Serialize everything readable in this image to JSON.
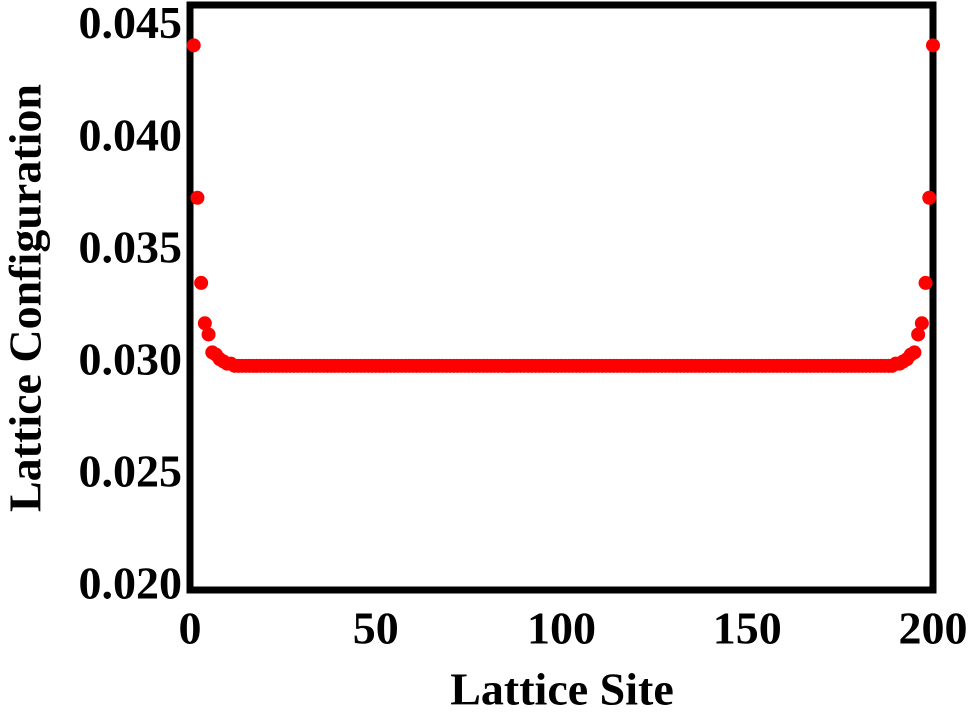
{
  "chart_data": {
    "type": "scatter",
    "x_label": "Lattice Site",
    "y_label": "Lattice Configuration",
    "xlim": [
      0,
      200
    ],
    "ylim": [
      0.02,
      0.0461
    ],
    "xticks": [
      0,
      50,
      100,
      150,
      200
    ],
    "yticks": [
      {
        "value": 0.02,
        "label": "0.020"
      },
      {
        "value": 0.025,
        "label": "0.025"
      },
      {
        "value": 0.03,
        "label": "0.030"
      },
      {
        "value": 0.035,
        "label": "0.035"
      },
      {
        "value": 0.04,
        "label": "0.040"
      },
      {
        "value": 0.045,
        "label": "0.045"
      }
    ],
    "grid": false,
    "series": [
      {
        "color": "#ff0000",
        "x": [
          1,
          2,
          3,
          4,
          5,
          6,
          7,
          8,
          9,
          10,
          11,
          12,
          13,
          14,
          15,
          16,
          17,
          18,
          19,
          20,
          21,
          22,
          23,
          24,
          25,
          26,
          27,
          28,
          29,
          30,
          31,
          32,
          33,
          34,
          35,
          36,
          37,
          38,
          39,
          40,
          41,
          42,
          43,
          44,
          45,
          46,
          47,
          48,
          49,
          50,
          51,
          52,
          53,
          54,
          55,
          56,
          57,
          58,
          59,
          60,
          61,
          62,
          63,
          64,
          65,
          66,
          67,
          68,
          69,
          70,
          71,
          72,
          73,
          74,
          75,
          76,
          77,
          78,
          79,
          80,
          81,
          82,
          83,
          84,
          85,
          86,
          87,
          88,
          89,
          90,
          91,
          92,
          93,
          94,
          95,
          96,
          97,
          98,
          99,
          100,
          101,
          102,
          103,
          104,
          105,
          106,
          107,
          108,
          109,
          110,
          111,
          112,
          113,
          114,
          115,
          116,
          117,
          118,
          119,
          120,
          121,
          122,
          123,
          124,
          125,
          126,
          127,
          128,
          129,
          130,
          131,
          132,
          133,
          134,
          135,
          136,
          137,
          138,
          139,
          140,
          141,
          142,
          143,
          144,
          145,
          146,
          147,
          148,
          149,
          150,
          151,
          152,
          153,
          154,
          155,
          156,
          157,
          158,
          159,
          160,
          161,
          162,
          163,
          164,
          165,
          166,
          167,
          168,
          169,
          170,
          171,
          172,
          173,
          174,
          175,
          176,
          177,
          178,
          179,
          180,
          181,
          182,
          183,
          184,
          185,
          186,
          187,
          188,
          189,
          190,
          191,
          192,
          193,
          194,
          195,
          196,
          197,
          198,
          199,
          200
        ],
        "values": [
          0.0443,
          0.0375,
          0.0337,
          0.0319,
          0.0314,
          0.0306,
          0.0305,
          0.0303,
          0.0302,
          0.0301,
          0.0301,
          0.03,
          0.03,
          0.03,
          0.03,
          0.03,
          0.03,
          0.03,
          0.03,
          0.03,
          0.03,
          0.03,
          0.03,
          0.03,
          0.03,
          0.03,
          0.03,
          0.03,
          0.03,
          0.03,
          0.03,
          0.03,
          0.03,
          0.03,
          0.03,
          0.03,
          0.03,
          0.03,
          0.03,
          0.03,
          0.03,
          0.03,
          0.03,
          0.03,
          0.03,
          0.03,
          0.03,
          0.03,
          0.03,
          0.03,
          0.03,
          0.03,
          0.03,
          0.03,
          0.03,
          0.03,
          0.03,
          0.03,
          0.03,
          0.03,
          0.03,
          0.03,
          0.03,
          0.03,
          0.03,
          0.03,
          0.03,
          0.03,
          0.03,
          0.03,
          0.03,
          0.03,
          0.03,
          0.03,
          0.03,
          0.03,
          0.03,
          0.03,
          0.03,
          0.03,
          0.03,
          0.03,
          0.03,
          0.03,
          0.03,
          0.03,
          0.03,
          0.03,
          0.03,
          0.03,
          0.03,
          0.03,
          0.03,
          0.03,
          0.03,
          0.03,
          0.03,
          0.03,
          0.03,
          0.03,
          0.03,
          0.03,
          0.03,
          0.03,
          0.03,
          0.03,
          0.03,
          0.03,
          0.03,
          0.03,
          0.03,
          0.03,
          0.03,
          0.03,
          0.03,
          0.03,
          0.03,
          0.03,
          0.03,
          0.03,
          0.03,
          0.03,
          0.03,
          0.03,
          0.03,
          0.03,
          0.03,
          0.03,
          0.03,
          0.03,
          0.03,
          0.03,
          0.03,
          0.03,
          0.03,
          0.03,
          0.03,
          0.03,
          0.03,
          0.03,
          0.03,
          0.03,
          0.03,
          0.03,
          0.03,
          0.03,
          0.03,
          0.03,
          0.03,
          0.03,
          0.03,
          0.03,
          0.03,
          0.03,
          0.03,
          0.03,
          0.03,
          0.03,
          0.03,
          0.03,
          0.03,
          0.03,
          0.03,
          0.03,
          0.03,
          0.03,
          0.03,
          0.03,
          0.03,
          0.03,
          0.03,
          0.03,
          0.03,
          0.03,
          0.03,
          0.03,
          0.03,
          0.03,
          0.03,
          0.03,
          0.03,
          0.03,
          0.03,
          0.03,
          0.03,
          0.03,
          0.03,
          0.03,
          0.03,
          0.0301,
          0.0301,
          0.0302,
          0.0303,
          0.0305,
          0.0306,
          0.0314,
          0.0319,
          0.0337,
          0.0375,
          0.0443
        ]
      }
    ]
  }
}
